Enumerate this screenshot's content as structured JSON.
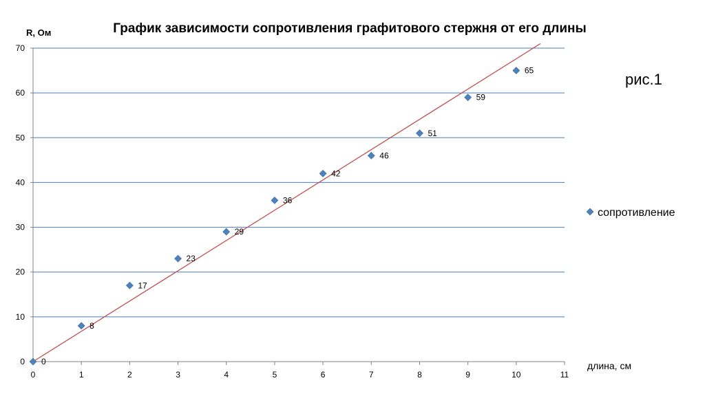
{
  "chart_data": {
    "type": "scatter",
    "title": "График зависимости сопротивления графитового стержня от его длины",
    "xlabel": "длина, см",
    "ylabel": "R, Ом",
    "figure_label": "рис.1",
    "xlim": [
      0,
      11
    ],
    "ylim": [
      0,
      70
    ],
    "x_ticks": [
      0,
      1,
      2,
      3,
      4,
      5,
      6,
      7,
      8,
      9,
      10,
      11
    ],
    "y_ticks": [
      0,
      10,
      20,
      30,
      40,
      50,
      60,
      70
    ],
    "grid": "horizontal",
    "legend_position": "right",
    "series": [
      {
        "name": "сопротивление",
        "color": "#4F81BD",
        "marker": "diamond",
        "x": [
          0,
          1,
          2,
          3,
          4,
          5,
          6,
          7,
          8,
          9,
          10
        ],
        "y": [
          0,
          8,
          17,
          23,
          29,
          36,
          42,
          46,
          51,
          59,
          65
        ],
        "labels": [
          "0",
          "8",
          "17",
          "23",
          "29",
          "36",
          "42",
          "46",
          "51",
          "59",
          "65"
        ]
      }
    ],
    "trendline": {
      "type": "linear",
      "color": "#C0504D",
      "x": [
        0,
        10.5
      ],
      "y": [
        0,
        71
      ]
    }
  }
}
